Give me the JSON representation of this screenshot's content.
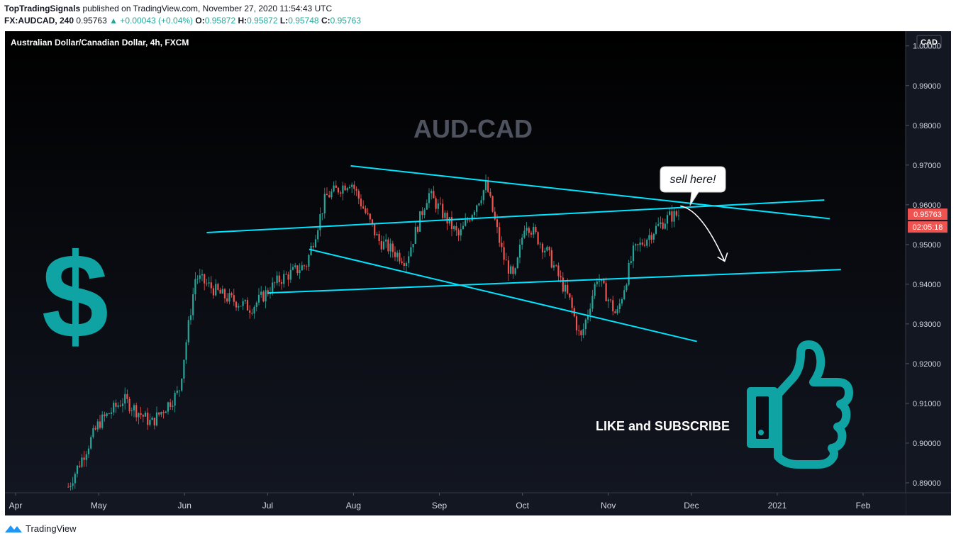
{
  "header": {
    "author": "TopTradingSignals",
    "published_text": " published on TradingView.com, November 27, 2020 11:54:43 UTC",
    "symbol": "FX:AUDCAD, 240",
    "last_price": "0.95763",
    "change": "▲ +0.00043 (+0.04%)",
    "o_label": "O:",
    "o_value": "0.95872",
    "h_label": "H:",
    "h_value": "0.95872",
    "l_label": "L:",
    "l_value": "0.95748",
    "c_label": "C:",
    "c_value": "0.95763"
  },
  "footer": {
    "brand": "TradingView",
    "logo_icon": "tradingview-logo-icon"
  },
  "colors": {
    "background": "#131722",
    "candle_up": "#26a69a",
    "candle_down": "#ef5350",
    "trendline": "#00e5ff",
    "badge": "#ef5350",
    "accent_teal": "#0fa3a3"
  },
  "chart_data": {
    "type": "candlestick",
    "instrument_label": "Australian Dollar/Canadian Dollar, 4h, FXCM",
    "currency_label": "CAD",
    "title": "AUD-CAD",
    "xlabels": [
      "Apr",
      "May",
      "Jun",
      "Jul",
      "Aug",
      "Sep",
      "Oct",
      "Nov",
      "Dec",
      "2021",
      "Feb"
    ],
    "yticks": [
      "1.00000",
      "0.99000",
      "0.98000",
      "0.97000",
      "0.96000",
      "0.95000",
      "0.94000",
      "0.93000",
      "0.92000",
      "0.91000",
      "0.90000",
      "0.89000"
    ],
    "ylim": [
      0.8875,
      1.0037
    ],
    "price_label": "0.95763",
    "countdown_label": "02:05:18",
    "approx_close_path": [
      {
        "date": "2020-04-20",
        "close": 0.889
      },
      {
        "date": "2020-05-01",
        "close": 0.905
      },
      {
        "date": "2020-05-10",
        "close": 0.911
      },
      {
        "date": "2020-05-20",
        "close": 0.905
      },
      {
        "date": "2020-05-30",
        "close": 0.913
      },
      {
        "date": "2020-06-05",
        "close": 0.942
      },
      {
        "date": "2020-06-15",
        "close": 0.937
      },
      {
        "date": "2020-06-25",
        "close": 0.934
      },
      {
        "date": "2020-07-05",
        "close": 0.941
      },
      {
        "date": "2020-07-15",
        "close": 0.945
      },
      {
        "date": "2020-07-22",
        "close": 0.962
      },
      {
        "date": "2020-07-31",
        "close": 0.966
      },
      {
        "date": "2020-08-10",
        "close": 0.951
      },
      {
        "date": "2020-08-20",
        "close": 0.946
      },
      {
        "date": "2020-08-28",
        "close": 0.963
      },
      {
        "date": "2020-09-08",
        "close": 0.952
      },
      {
        "date": "2020-09-18",
        "close": 0.965
      },
      {
        "date": "2020-09-24",
        "close": 0.947
      },
      {
        "date": "2020-09-28",
        "close": 0.941
      },
      {
        "date": "2020-10-02",
        "close": 0.956
      },
      {
        "date": "2020-10-10",
        "close": 0.948
      },
      {
        "date": "2020-10-18",
        "close": 0.936
      },
      {
        "date": "2020-10-22",
        "close": 0.926
      },
      {
        "date": "2020-10-28",
        "close": 0.942
      },
      {
        "date": "2020-11-04",
        "close": 0.932
      },
      {
        "date": "2020-11-10",
        "close": 0.948
      },
      {
        "date": "2020-11-18",
        "close": 0.954
      },
      {
        "date": "2020-11-23",
        "close": 0.957
      },
      {
        "date": "2020-11-27",
        "close": 0.9576
      }
    ],
    "trendlines": [
      {
        "name": "upper-descending",
        "from": {
          "date": "2020-07-31",
          "price": 0.9698
        },
        "to": {
          "date": "2021-01-20",
          "price": 0.9565
        }
      },
      {
        "name": "lower-descending",
        "from": {
          "date": "2020-07-16",
          "price": 0.9488
        },
        "to": {
          "date": "2020-12-03",
          "price": 0.9256
        }
      },
      {
        "name": "upper-ascending",
        "from": {
          "date": "2020-06-09",
          "price": 0.953
        },
        "to": {
          "date": "2021-01-18",
          "price": 0.9612
        }
      },
      {
        "name": "lower-ascending",
        "from": {
          "date": "2020-07-01",
          "price": 0.9378
        },
        "to": {
          "date": "2021-01-24",
          "price": 0.9437
        }
      }
    ],
    "annotations": {
      "callout": "sell here!",
      "projection": {
        "from": {
          "date": "2020-11-27",
          "price": 0.9597
        },
        "to": {
          "date": "2020-12-13",
          "price": 0.9458
        }
      },
      "cta_text": "LIKE and SUBSCRIBE",
      "dollar_symbol": "$",
      "dollar_icon": "dollar-sign-icon",
      "thumb_icon": "thumbs-up-icon"
    }
  }
}
